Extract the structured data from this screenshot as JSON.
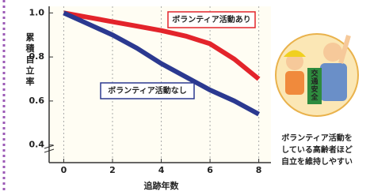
{
  "chart_data": {
    "type": "line",
    "ylabel": "累積自立率",
    "xlabel": "追跡年数",
    "x": [
      0,
      1,
      2,
      3,
      4,
      5,
      6,
      7,
      8
    ],
    "series": [
      {
        "name": "ボランティア活動あり",
        "color": "#e3242b",
        "values": [
          1.0,
          0.98,
          0.96,
          0.94,
          0.92,
          0.895,
          0.86,
          0.79,
          0.7
        ]
      },
      {
        "name": "ボランティア活動なし",
        "color": "#2b3990",
        "values": [
          1.0,
          0.95,
          0.9,
          0.84,
          0.77,
          0.71,
          0.65,
          0.6,
          0.54
        ]
      }
    ],
    "xlim": [
      -0.6,
      8.5
    ],
    "ylim": [
      0.32,
      1.03
    ],
    "xticks": [
      0,
      2,
      4,
      6,
      8
    ],
    "yticks": [
      {
        "value": 1,
        "label": "1.0"
      },
      {
        "value": 0.8,
        "label": "0.8"
      },
      {
        "value": 0.6,
        "label": "0.6"
      },
      {
        "value": 0.4,
        "label": "0.4"
      }
    ],
    "grid": true,
    "annotation": [
      "ボランティア活動を",
      "している高齢者ほど",
      "自立を維持しやすい"
    ],
    "sign": "交通安全"
  }
}
